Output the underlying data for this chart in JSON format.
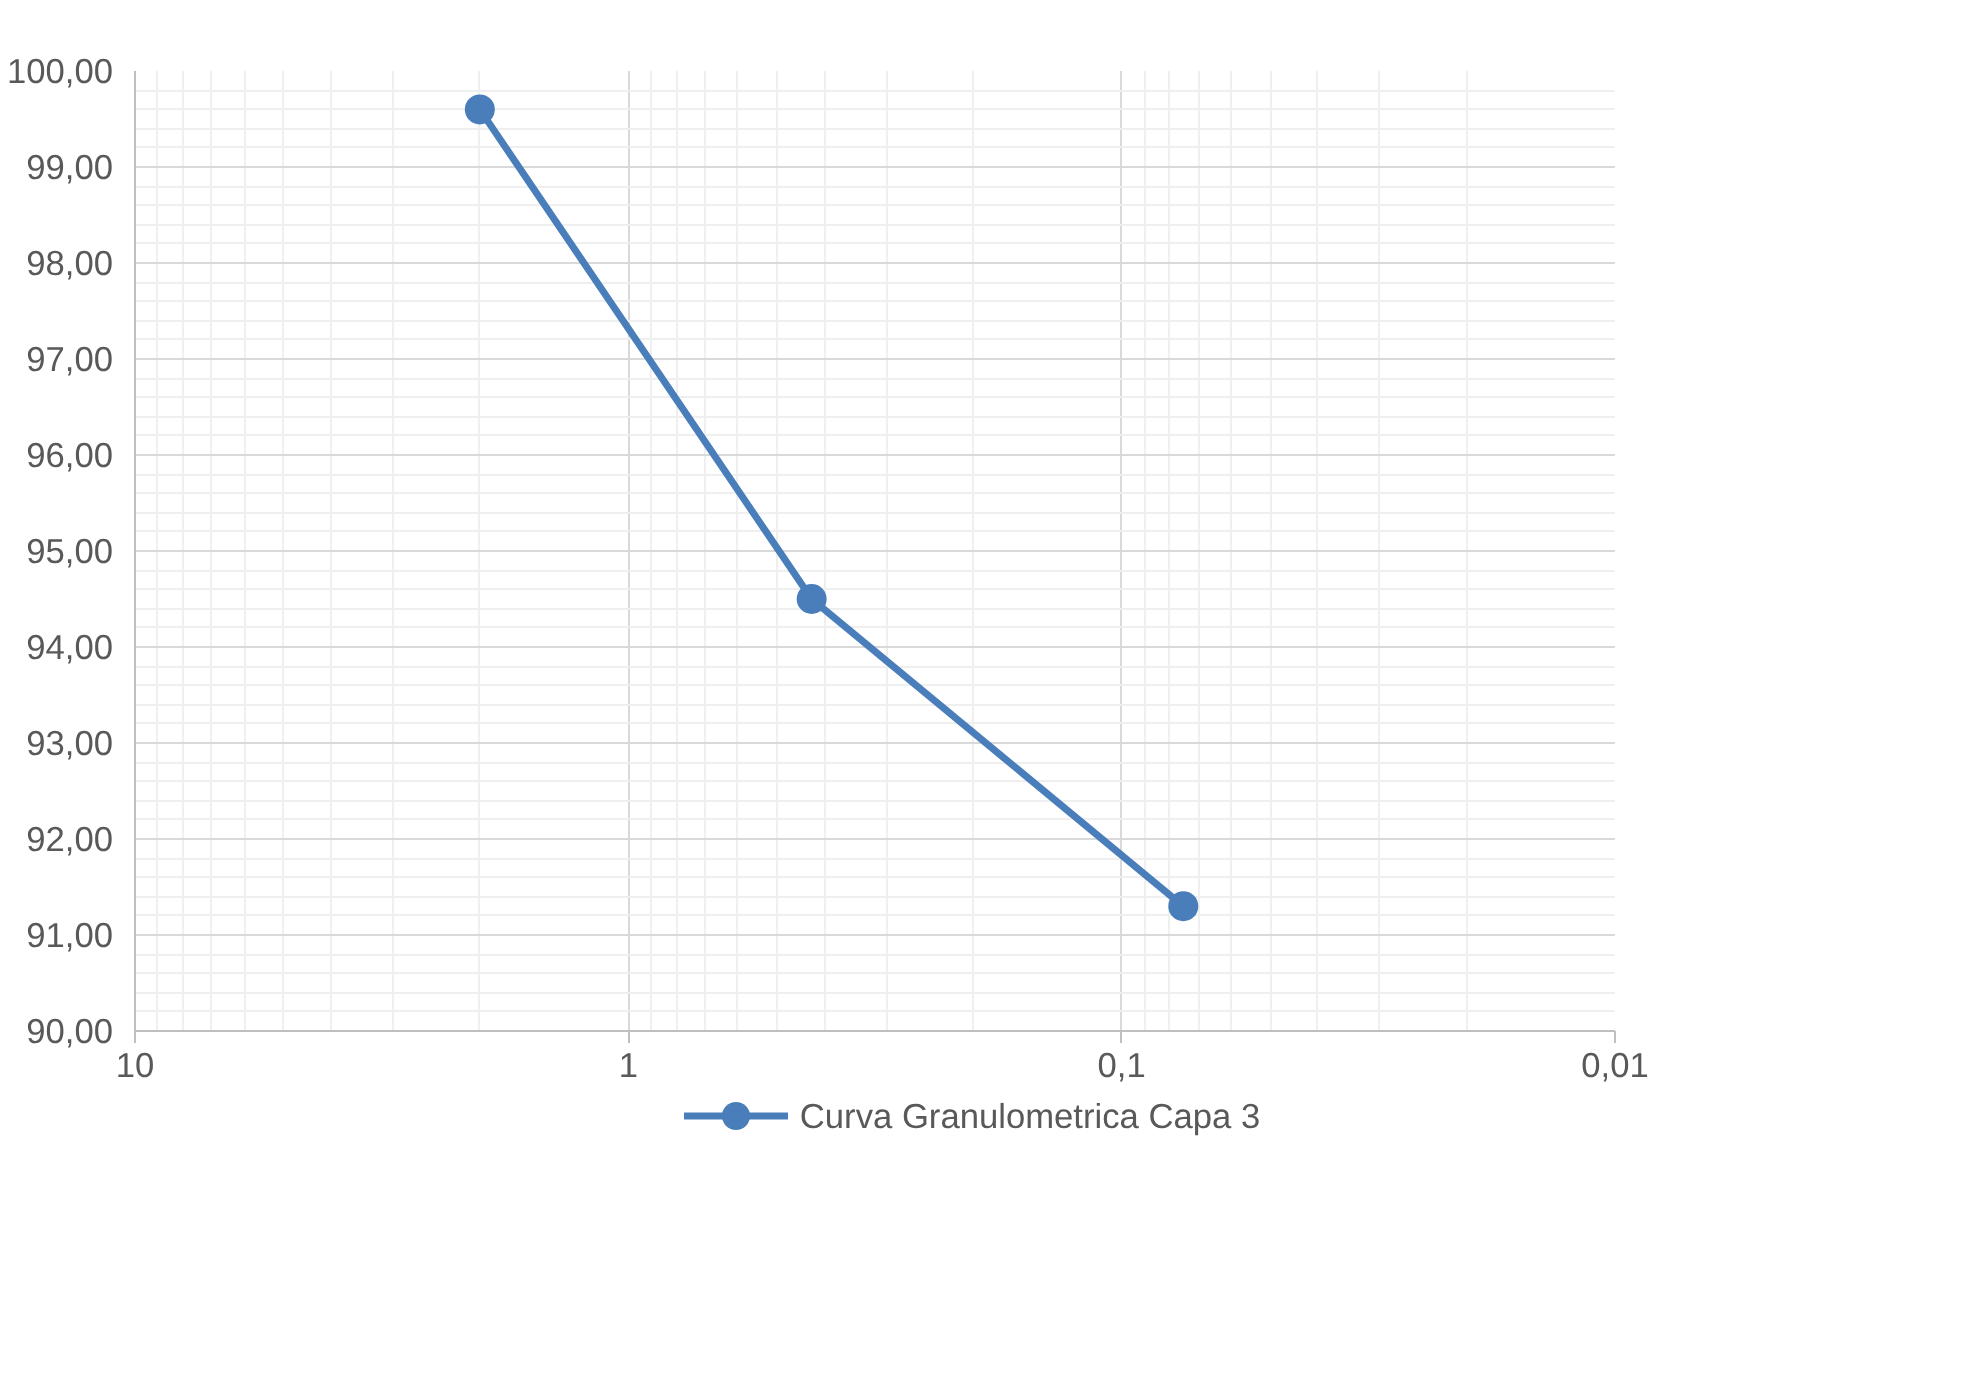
{
  "chart_data": {
    "type": "line",
    "log": "x",
    "x": [
      2.0,
      0.425,
      0.075
    ],
    "series": [
      {
        "name": "Curva Granulometrica Capa 3",
        "color": "#4a7ebb",
        "values": [
          99.6,
          94.5,
          91.3
        ]
      }
    ],
    "xlim": [
      10,
      0.01
    ],
    "xticks": [
      {
        "value": 10,
        "label": "10"
      },
      {
        "value": 1,
        "label": "1"
      },
      {
        "value": 0.1,
        "label": "0,1"
      },
      {
        "value": 0.01,
        "label": "0,01"
      }
    ],
    "ylim": [
      90,
      100
    ],
    "yticks": [
      {
        "value": 90,
        "label": "90,00"
      },
      {
        "value": 91,
        "label": "91,00"
      },
      {
        "value": 92,
        "label": "92,00"
      },
      {
        "value": 93,
        "label": "93,00"
      },
      {
        "value": 94,
        "label": "94,00"
      },
      {
        "value": 95,
        "label": "95,00"
      },
      {
        "value": 96,
        "label": "96,00"
      },
      {
        "value": 97,
        "label": "97,00"
      },
      {
        "value": 98,
        "label": "98,00"
      },
      {
        "value": 99,
        "label": "99,00"
      },
      {
        "value": 100,
        "label": "100,00"
      }
    ],
    "grid": true,
    "legend": "bottom",
    "marker": "circle",
    "line_style": "solid"
  }
}
